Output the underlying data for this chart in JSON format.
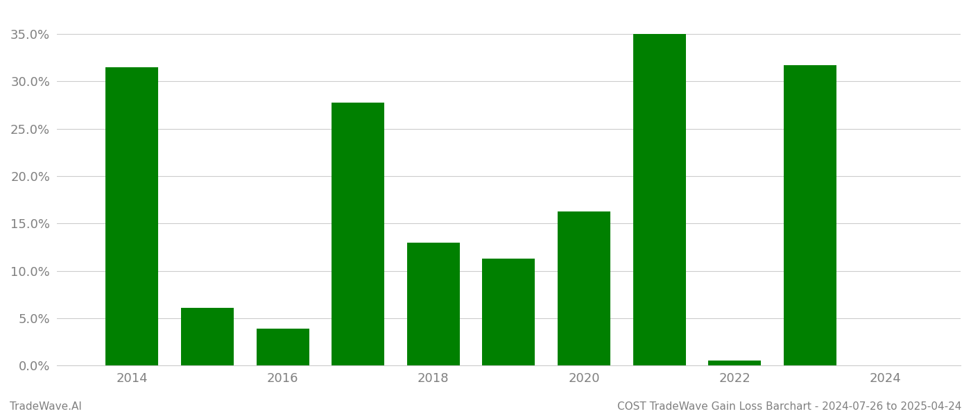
{
  "years": [
    2014,
    2015,
    2016,
    2017,
    2018,
    2019,
    2020,
    2021,
    2022,
    2023,
    2024
  ],
  "values": [
    0.315,
    0.061,
    0.039,
    0.278,
    0.13,
    0.113,
    0.163,
    0.35,
    0.005,
    0.317,
    0.0
  ],
  "bar_color": "#008000",
  "background_color": "#ffffff",
  "grid_color": "#cccccc",
  "ylim": [
    0,
    0.375
  ],
  "yticks": [
    0.0,
    0.05,
    0.1,
    0.15,
    0.2,
    0.25,
    0.3,
    0.35
  ],
  "xticks": [
    2014,
    2016,
    2018,
    2020,
    2022,
    2024
  ],
  "tick_label_color": "#808080",
  "footer_left": "TradeWave.AI",
  "footer_right": "COST TradeWave Gain Loss Barchart - 2024-07-26 to 2025-04-24",
  "footer_color": "#808080",
  "footer_fontsize": 11,
  "tick_fontsize": 13,
  "bar_width": 0.7
}
